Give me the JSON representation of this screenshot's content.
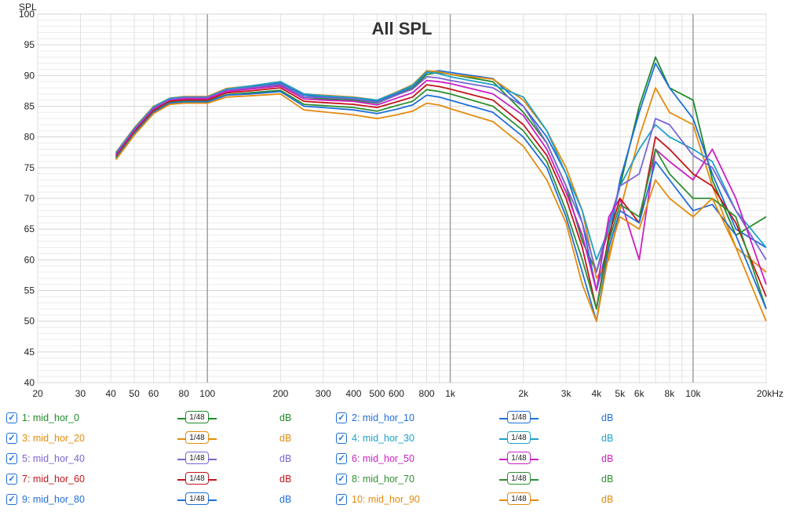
{
  "chart_data": {
    "type": "line",
    "title": "All SPL",
    "ylabel": "SPL",
    "xlabel": "",
    "x_scale": "log",
    "xlim": [
      20,
      20000
    ],
    "ylim": [
      40,
      100
    ],
    "x_ticks": [
      {
        "value": 20,
        "label": "20"
      },
      {
        "value": 30,
        "label": "30"
      },
      {
        "value": 40,
        "label": "40"
      },
      {
        "value": 50,
        "label": "50"
      },
      {
        "value": 60,
        "label": "60"
      },
      {
        "value": 80,
        "label": "80"
      },
      {
        "value": 100,
        "label": "100"
      },
      {
        "value": 200,
        "label": "200"
      },
      {
        "value": 300,
        "label": "300"
      },
      {
        "value": 400,
        "label": "400"
      },
      {
        "value": 500,
        "label": "500"
      },
      {
        "value": 600,
        "label": "600"
      },
      {
        "value": 800,
        "label": "800"
      },
      {
        "value": 1000,
        "label": "1k"
      },
      {
        "value": 2000,
        "label": "2k"
      },
      {
        "value": 3000,
        "label": "3k"
      },
      {
        "value": 4000,
        "label": "4k"
      },
      {
        "value": 5000,
        "label": "5k"
      },
      {
        "value": 6000,
        "label": "6k"
      },
      {
        "value": 8000,
        "label": "8k"
      },
      {
        "value": 10000,
        "label": "10k"
      },
      {
        "value": 20000,
        "label": "20kHz"
      }
    ],
    "y_ticks": [
      40,
      45,
      50,
      55,
      60,
      65,
      70,
      75,
      80,
      85,
      90,
      95,
      100
    ],
    "grid": true,
    "legend_position": "bottom",
    "x": [
      42,
      50,
      60,
      70,
      80,
      100,
      120,
      150,
      200,
      250,
      300,
      400,
      500,
      600,
      700,
      800,
      900,
      1000,
      1500,
      2000,
      2500,
      3000,
      3500,
      4000,
      4500,
      5000,
      6000,
      7000,
      8000,
      10000,
      12000,
      15000,
      20000
    ],
    "series": [
      {
        "name": "1: mid_hor_0",
        "color": "#1f8a2a",
        "smoothing": "1/48",
        "unit": "dB",
        "values": [
          77,
          81,
          84.5,
          86,
          86.4,
          86.3,
          87.5,
          88,
          88.5,
          86.5,
          86.2,
          86,
          85.5,
          86.8,
          88,
          90.2,
          90.5,
          90.2,
          89,
          84,
          79,
          72,
          63,
          58,
          65,
          72,
          85,
          93,
          88,
          86,
          73,
          64,
          67
        ]
      },
      {
        "name": "2: mid_hor_10",
        "color": "#1e6fd9",
        "smoothing": "1/48",
        "unit": "dB",
        "values": [
          77.3,
          81.3,
          84.8,
          86.2,
          86.5,
          86.5,
          87.8,
          88.2,
          88.8,
          86.8,
          86.5,
          86.3,
          85.8,
          87,
          88.3,
          90.5,
          90.8,
          90.5,
          89.5,
          85,
          80,
          74,
          66,
          55,
          63,
          73,
          84,
          92,
          88,
          83,
          74,
          65,
          62
        ]
      },
      {
        "name": "3: mid_hor_20",
        "color": "#e38b0c",
        "smoothing": "1/48",
        "unit": "dB",
        "values": [
          77.5,
          81.5,
          85,
          86.3,
          86.6,
          86.6,
          87.9,
          88.3,
          89,
          87,
          86.8,
          86.5,
          86,
          87.3,
          88.5,
          90.8,
          90.6,
          90.2,
          89.4,
          86,
          81,
          75,
          68,
          57,
          60,
          68,
          80,
          88,
          84,
          82,
          72,
          62,
          58
        ]
      },
      {
        "name": "4: mid_hor_30",
        "color": "#1ea0c8",
        "smoothing": "1/48",
        "unit": "dB",
        "values": [
          77.4,
          81.4,
          84.9,
          86.3,
          86.5,
          86.5,
          87.8,
          88.3,
          89,
          87,
          86.7,
          86.4,
          86,
          87.2,
          88.4,
          90.6,
          90.3,
          89.8,
          88.5,
          86.5,
          81,
          74,
          68,
          60,
          65,
          72,
          78,
          82,
          80,
          78,
          76,
          68,
          62
        ]
      },
      {
        "name": "5: mid_hor_40",
        "color": "#7b64d2",
        "smoothing": "1/48",
        "unit": "dB",
        "values": [
          77.2,
          81.2,
          84.7,
          86.1,
          86.4,
          86.4,
          87.6,
          88,
          88.6,
          86.5,
          86.4,
          86.2,
          85.6,
          86.8,
          87.8,
          89.8,
          89.6,
          89.2,
          88,
          85,
          79,
          72,
          66,
          58,
          66,
          72,
          74,
          83,
          82,
          77,
          75,
          68,
          60
        ]
      },
      {
        "name": "6: mid_hor_50",
        "color": "#cc1fc4",
        "smoothing": "1/48",
        "unit": "dB",
        "values": [
          77,
          81,
          84.5,
          85.9,
          86.2,
          86.2,
          87.4,
          87.8,
          88.3,
          86.2,
          86,
          85.8,
          85.2,
          86.3,
          87.2,
          89.2,
          89,
          88.7,
          87,
          83.5,
          78,
          71,
          64,
          55,
          67,
          70,
          60,
          78,
          76,
          73,
          78,
          70,
          56
        ]
      },
      {
        "name": "7: mid_hor_60",
        "color": "#c4141b",
        "smoothing": "1/48",
        "unit": "dB",
        "values": [
          76.8,
          80.8,
          84.3,
          85.8,
          86,
          86,
          87.2,
          87.5,
          88,
          85.8,
          85.6,
          85.3,
          84.8,
          85.7,
          86.5,
          88.5,
          88.2,
          87.8,
          86,
          82,
          77,
          70,
          62,
          52,
          64,
          70,
          66,
          80,
          78,
          74,
          72,
          66,
          54
        ]
      },
      {
        "name": "8: mid_hor_70",
        "color": "#2f8f31",
        "smoothing": "1/48",
        "unit": "dB",
        "values": [
          76.6,
          80.6,
          84.1,
          85.6,
          85.8,
          85.8,
          86.9,
          87.2,
          87.6,
          85.3,
          85.1,
          84.8,
          84.2,
          85.1,
          85.8,
          87.7,
          87.4,
          87,
          85,
          81,
          76,
          68,
          60,
          52,
          63,
          69,
          67,
          78,
          74,
          70,
          70,
          67,
          52
        ]
      },
      {
        "name": "9: mid_hor_80",
        "color": "#1e6fd9",
        "smoothing": "1/48",
        "unit": "dB",
        "values": [
          76.5,
          80.5,
          84,
          85.5,
          85.7,
          85.7,
          86.8,
          87,
          87.4,
          85,
          84.8,
          84.4,
          83.8,
          84.5,
          85.2,
          86.8,
          86.5,
          86,
          84,
          80,
          75,
          67,
          58,
          50,
          62,
          68,
          66,
          76,
          73,
          68,
          69,
          64,
          52
        ]
      },
      {
        "name": "10: mid_hor_90",
        "color": "#e38b0c",
        "smoothing": "1/48",
        "unit": "dB",
        "values": [
          76.3,
          80.3,
          83.8,
          85.3,
          85.5,
          85.5,
          86.5,
          86.7,
          87,
          84.4,
          84.1,
          83.6,
          83,
          83.6,
          84.2,
          85.5,
          85.2,
          84.6,
          82.5,
          78.5,
          73,
          66,
          56,
          50,
          61,
          67,
          65,
          73,
          70,
          67,
          70,
          62,
          50
        ]
      }
    ]
  }
}
